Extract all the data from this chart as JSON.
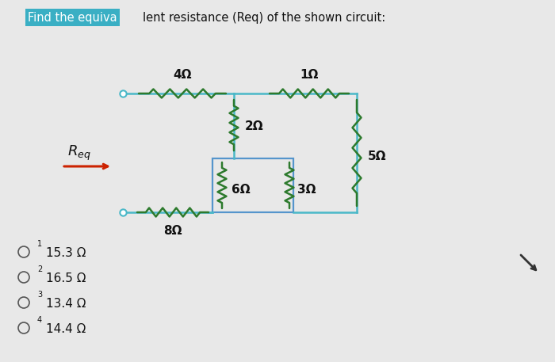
{
  "title_highlight": "Find the equiva",
  "title_normal": "lent resistance (Req) of the shown circuit:",
  "highlight_color": "#3aafc4",
  "highlight_text_color": "#ffffff",
  "bg_color": "#e8e8e8",
  "wire_color": "#4ab8c8",
  "resistor_color": "#2d7a2d",
  "inner_rect_color": "#5595cc",
  "arrow_color": "#cc2200",
  "text_color": "#111111",
  "options": [
    {
      "num": "1",
      "val": "15.3 Ω"
    },
    {
      "num": "2",
      "val": "16.5 Ω"
    },
    {
      "num": "3",
      "val": "13.4 Ω"
    },
    {
      "num": "4",
      "val": "14.4 Ω"
    }
  ]
}
